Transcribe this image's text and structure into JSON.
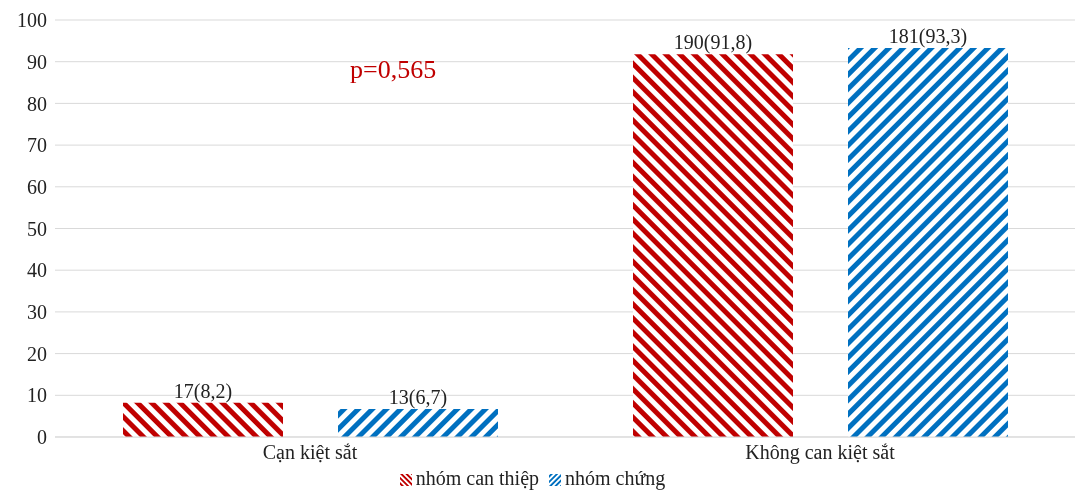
{
  "chart_data": {
    "type": "bar",
    "categories": [
      "Cạn kiệt sắt",
      "Không can kiệt sắt"
    ],
    "series": [
      {
        "name": "nhóm can thiệp",
        "color": "#c00000",
        "values": [
          8.2,
          91.8
        ],
        "value_labels": [
          "17(8,2)",
          "190(91,8)"
        ]
      },
      {
        "name": "nhóm chứng",
        "color": "#0070c0",
        "values": [
          6.7,
          93.3
        ],
        "value_labels": [
          "13(6,7)",
          "181(93,3)"
        ]
      }
    ],
    "ylim": [
      0,
      100
    ],
    "yticks": [
      0,
      10,
      20,
      30,
      40,
      50,
      60,
      70,
      80,
      90,
      100
    ],
    "grid": "y",
    "legend": "bottom",
    "annotations": [
      "p=0,565"
    ]
  }
}
